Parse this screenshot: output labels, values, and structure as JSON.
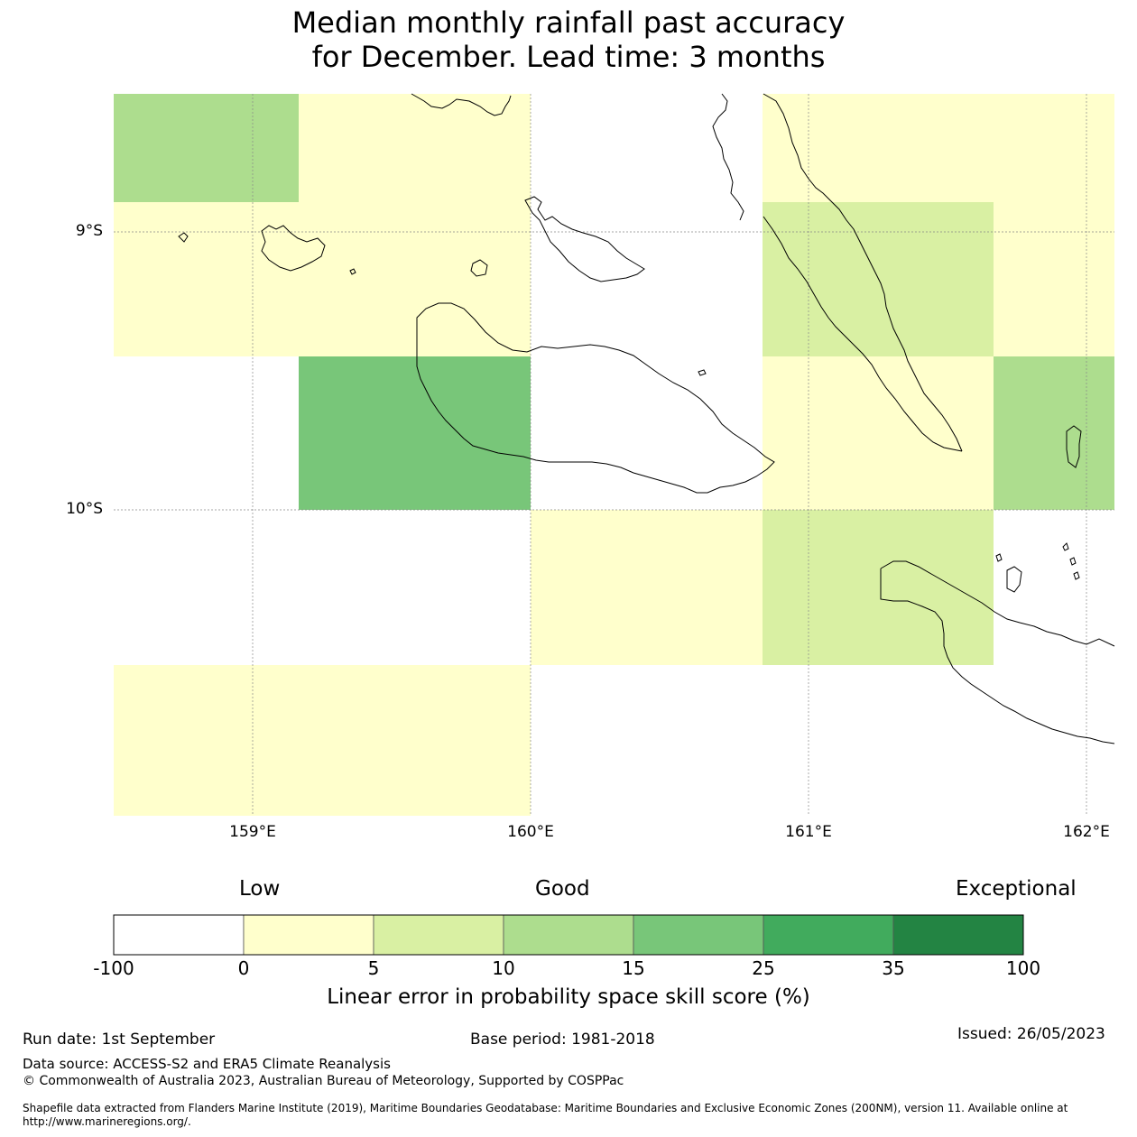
{
  "title": {
    "line1": "Median monthly rainfall past accuracy",
    "line2": "for December. Lead time: 3 months"
  },
  "map": {
    "lat_labels": [
      "9°S",
      "10°S"
    ],
    "lon_labels": [
      "159°E",
      "160°E",
      "161°E",
      "162°E"
    ],
    "cells": [
      {
        "row": 0,
        "col": 0,
        "score_class": "10-15"
      },
      {
        "row": 0,
        "col": 1,
        "score_class": "0-5"
      },
      {
        "row": 0,
        "col": 2,
        "score_class": "0-5"
      },
      {
        "row": 0,
        "col": 5,
        "score_class": "0-5"
      },
      {
        "row": 0,
        "col": 6,
        "score_class": "0-5"
      },
      {
        "row": 1,
        "col": 0,
        "score_class": "0-5"
      },
      {
        "row": 1,
        "col": 1,
        "score_class": "0-5"
      },
      {
        "row": 1,
        "col": 2,
        "score_class": "0-5"
      },
      {
        "row": 1,
        "col": 5,
        "score_class": "5-10"
      },
      {
        "row": 1,
        "col": 6,
        "score_class": "0-5"
      },
      {
        "row": 2,
        "col": 1,
        "score_class": "15-25"
      },
      {
        "row": 2,
        "col": 2,
        "score_class": "15-25"
      },
      {
        "row": 2,
        "col": 5,
        "score_class": "0-5"
      },
      {
        "row": 2,
        "col": 6,
        "score_class": "10-15"
      },
      {
        "row": 3,
        "col": 3,
        "score_class": "0-5"
      },
      {
        "row": 3,
        "col": 4,
        "score_class": "0-5"
      },
      {
        "row": 3,
        "col": 5,
        "score_class": "5-10"
      },
      {
        "row": 4,
        "col": 0,
        "score_class": "0-5"
      },
      {
        "row": 4,
        "col": 1,
        "score_class": "0-5"
      },
      {
        "row": 4,
        "col": 2,
        "score_class": "0-5"
      }
    ]
  },
  "legend": {
    "tiers": [
      "Low",
      "Good",
      "Exceptional"
    ],
    "ticks": [
      "-100",
      "0",
      "5",
      "10",
      "15",
      "25",
      "35",
      "100"
    ],
    "bins": [
      {
        "range": "-100-0",
        "color": "#ffffff"
      },
      {
        "range": "0-5",
        "color": "#ffffcc"
      },
      {
        "range": "5-10",
        "color": "#d9f0a3"
      },
      {
        "range": "10-15",
        "color": "#addd8e"
      },
      {
        "range": "15-25",
        "color": "#78c679"
      },
      {
        "range": "25-35",
        "color": "#41ab5d"
      },
      {
        "range": "35-100",
        "color": "#238443"
      }
    ],
    "title": "Linear error in probability space skill score (%)"
  },
  "footer": {
    "run_date": "Run date: 1st September",
    "base_period": "Base period: 1981-2018",
    "issued": "Issued: 26/05/2023",
    "data_source": "Data source: ACCESS-S2 and ERA5 Climate Reanalysis",
    "copyright": "© Commonwealth of Australia 2023, Australian Bureau of Meteorology, Supported by COSPPac",
    "shapefile_line1": "Shapefile data extracted from Flanders Marine Institute (2019), Maritime Boundaries Geodatabase: Maritime Boundaries and Exclusive Economic Zones (200NM), version 11. Available online at",
    "shapefile_line2": "http://www.marineregions.org/."
  }
}
